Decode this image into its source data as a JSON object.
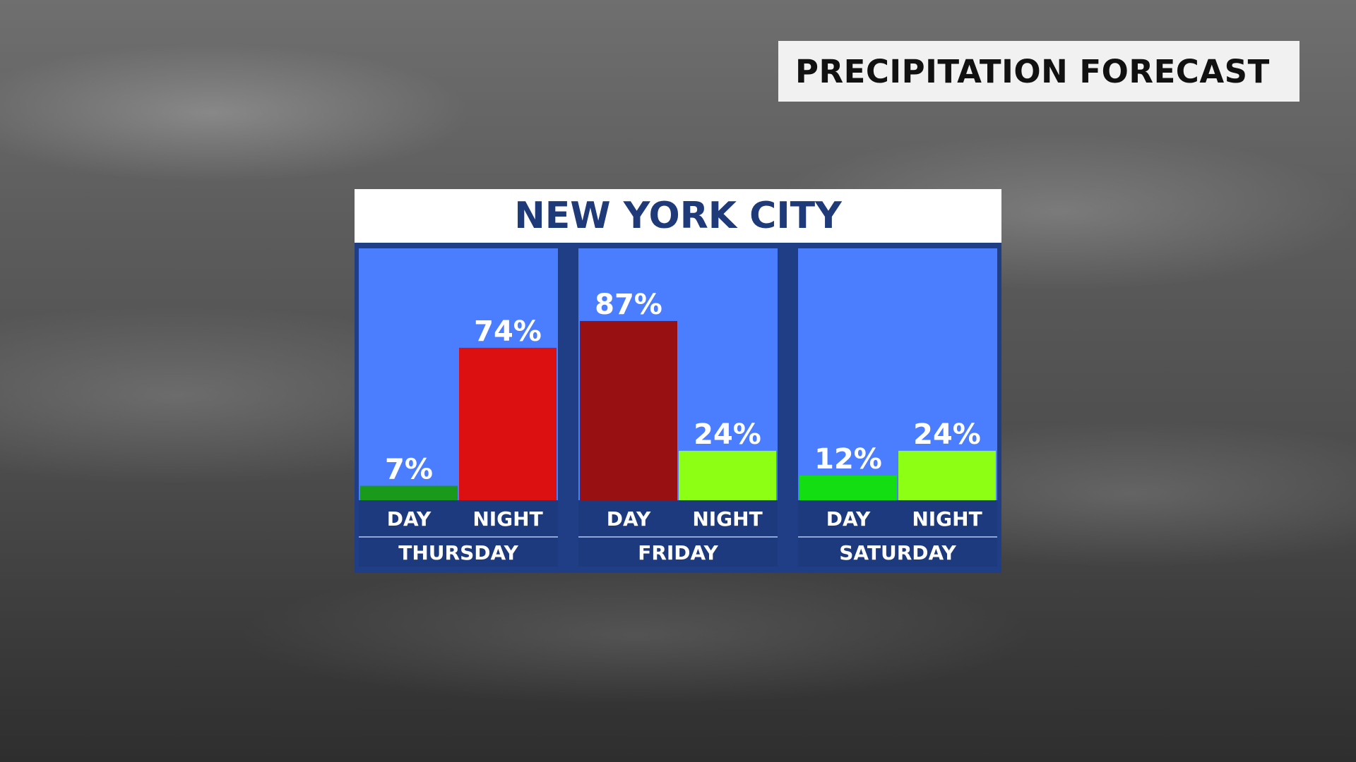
{
  "badge": {
    "title": "PRECIPITATION FORECAST"
  },
  "chart_data": {
    "type": "bar",
    "title": "NEW YORK CITY",
    "ylim": [
      0,
      100
    ],
    "groups": [
      {
        "day": "THURSDAY",
        "bars": [
          {
            "period": "DAY",
            "value": 7,
            "label": "7%",
            "color": "#1a9a1a"
          },
          {
            "period": "NIGHT",
            "value": 74,
            "label": "74%",
            "color": "#dc1010"
          }
        ]
      },
      {
        "day": "FRIDAY",
        "bars": [
          {
            "period": "DAY",
            "value": 87,
            "label": "87%",
            "color": "#981012"
          },
          {
            "period": "NIGHT",
            "value": 24,
            "label": "24%",
            "color": "#8cff14"
          }
        ]
      },
      {
        "day": "SATURDAY",
        "bars": [
          {
            "period": "DAY",
            "value": 12,
            "label": "12%",
            "color": "#12de12"
          },
          {
            "period": "NIGHT",
            "value": 24,
            "label": "24%",
            "color": "#8cff14"
          }
        ]
      }
    ],
    "colors": {
      "panel": "#4a7dff",
      "frame": "#1f3e86",
      "label_strip": "#1e3a7f"
    }
  }
}
